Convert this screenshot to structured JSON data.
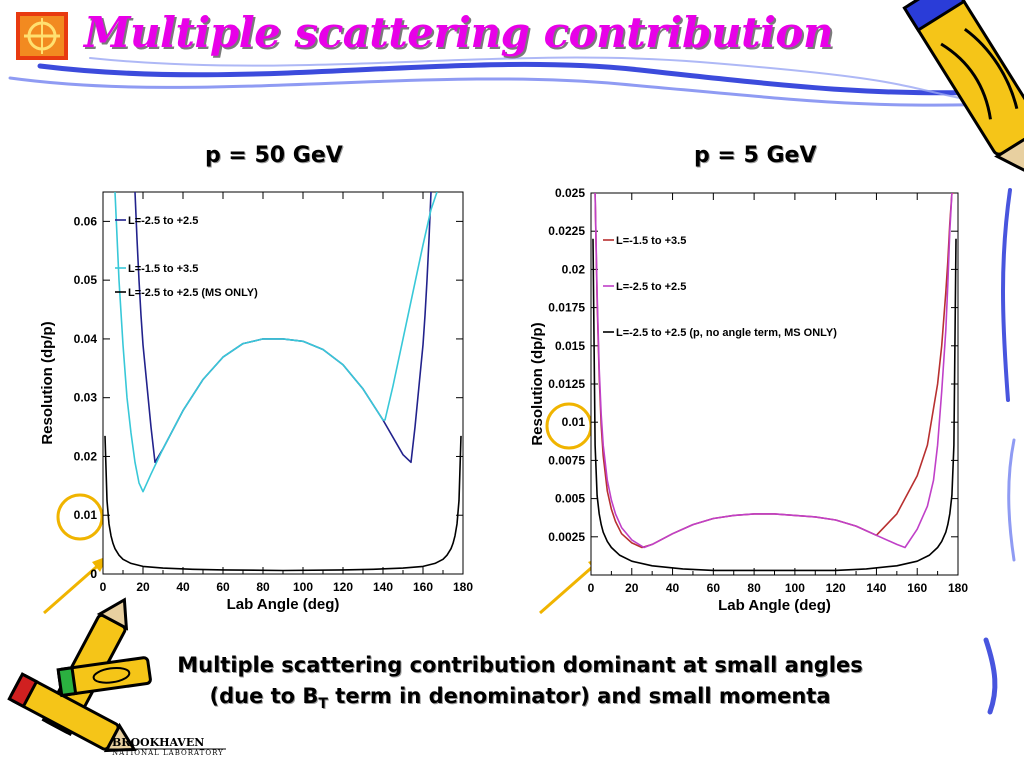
{
  "slide": {
    "title": "Multiple scattering contribution",
    "caption_line1": "Multiple scattering contribution dominant at small angles",
    "caption_line2_a": "(due to B",
    "caption_line2_sub": "T",
    "caption_line2_b": " term in denominator) and small momenta",
    "logo_text": "BROOKHAVEN",
    "logo_subtext": "NATIONAL LABORATORY",
    "colors": {
      "title": "#e800e8",
      "pencil_yellow": "#f5c518",
      "swoosh_blue": "#1a2bd6",
      "highlight_circle": "#f0b400"
    }
  },
  "chart_data": [
    {
      "type": "line",
      "title": "p = 50 GeV",
      "xlabel": "Lab Angle (deg)",
      "ylabel": "Resolution (dp/p)",
      "xlim": [
        0,
        180
      ],
      "ylim": [
        0,
        0.065
      ],
      "xticks": [
        0,
        20,
        40,
        60,
        80,
        100,
        120,
        140,
        160,
        180
      ],
      "yticks": [
        0,
        0.01,
        0.02,
        0.03,
        0.04,
        0.05,
        0.06
      ],
      "ytick_labels": [
        "0",
        "0.01",
        "0.02",
        "0.03",
        "0.04",
        "0.05",
        "0.06"
      ],
      "highlighted_tick": "0.01",
      "legend_position": "top-left",
      "series": [
        {
          "name": "L=-2.5 to +2.5",
          "color": "#22228c",
          "x": [
            16,
            17,
            18,
            19,
            20,
            22,
            24,
            26,
            30,
            40,
            50,
            60,
            70,
            80,
            90,
            100,
            110,
            120,
            130,
            140,
            150,
            154,
            156,
            158,
            160,
            161,
            162,
            163,
            164
          ],
          "y": [
            0.065,
            0.057,
            0.05,
            0.044,
            0.039,
            0.032,
            0.025,
            0.019,
            0.0213,
            0.0278,
            0.0331,
            0.0369,
            0.0392,
            0.04,
            0.04,
            0.0396,
            0.0382,
            0.0356,
            0.0315,
            0.0262,
            0.0203,
            0.019,
            0.025,
            0.032,
            0.039,
            0.044,
            0.05,
            0.057,
            0.065
          ]
        },
        {
          "name": "L=-1.5 to +3.5",
          "color": "#38c8d8",
          "x": [
            6,
            8,
            10,
            12,
            14,
            16,
            18,
            20,
            24,
            30,
            40,
            50,
            60,
            70,
            80,
            90,
            100,
            110,
            120,
            130,
            140,
            141,
            145,
            150,
            155,
            160,
            164,
            167
          ],
          "y": [
            0.065,
            0.05,
            0.039,
            0.03,
            0.024,
            0.019,
            0.0155,
            0.014,
            0.017,
            0.0213,
            0.0278,
            0.0331,
            0.0369,
            0.0392,
            0.04,
            0.04,
            0.0396,
            0.0382,
            0.0356,
            0.0315,
            0.0262,
            0.0262,
            0.032,
            0.04,
            0.048,
            0.056,
            0.062,
            0.065
          ]
        },
        {
          "name": "L=-2.5 to +2.5 (MS ONLY)",
          "color": "#000000",
          "x": [
            1,
            2,
            3,
            4,
            5,
            6,
            8,
            10,
            14,
            20,
            30,
            45,
            60,
            90,
            120,
            135,
            150,
            160,
            166,
            170,
            172,
            174,
            175,
            176,
            177,
            178,
            179
          ],
          "y": [
            0.0235,
            0.0125,
            0.0085,
            0.0065,
            0.0052,
            0.0043,
            0.0032,
            0.0025,
            0.0018,
            0.0013,
            0.001,
            0.0008,
            0.0007,
            0.0006,
            0.0007,
            0.0008,
            0.001,
            0.0013,
            0.0018,
            0.0025,
            0.0032,
            0.0043,
            0.0052,
            0.0065,
            0.0085,
            0.0125,
            0.0235
          ]
        }
      ]
    },
    {
      "type": "line",
      "title": "p = 5 GeV",
      "xlabel": "Lab Angle (deg)",
      "ylabel": "Resolution (dp/p)",
      "xlim": [
        0,
        180
      ],
      "ylim": [
        0,
        0.025
      ],
      "xticks": [
        0,
        20,
        40,
        60,
        80,
        100,
        120,
        140,
        160,
        180
      ],
      "yticks": [
        0.0025,
        0.005,
        0.0075,
        0.01,
        0.0125,
        0.015,
        0.0175,
        0.02,
        0.0225,
        0.025
      ],
      "ytick_labels": [
        "0.0025",
        "0.005",
        "0.0075",
        "0.01",
        "0.0125",
        "0.015",
        "0.0175",
        "0.02",
        "0.0225",
        "0.025"
      ],
      "highlighted_tick": "0.01",
      "legend_position": "top-left",
      "series": [
        {
          "name": "L=-1.5 to +3.5",
          "color": "#b83030",
          "x": [
            2,
            3,
            4,
            5,
            6,
            8,
            10,
            12,
            15,
            20,
            25,
            30,
            40,
            50,
            60,
            70,
            80,
            90,
            100,
            110,
            120,
            130,
            140,
            150,
            160,
            165,
            170,
            172,
            174,
            175,
            176,
            177,
            178
          ],
          "y": [
            0.025,
            0.018,
            0.013,
            0.0098,
            0.0078,
            0.0055,
            0.0043,
            0.0035,
            0.0027,
            0.0021,
            0.0018,
            0.002,
            0.0027,
            0.0033,
            0.0037,
            0.0039,
            0.004,
            0.004,
            0.0039,
            0.0038,
            0.0036,
            0.0032,
            0.0026,
            0.004,
            0.0065,
            0.0085,
            0.0125,
            0.015,
            0.0185,
            0.0205,
            0.023,
            0.025,
            0.025
          ]
        },
        {
          "name": "L=-2.5 to +2.5",
          "color": "#c040c8",
          "x": [
            2,
            3,
            4,
            5,
            6,
            8,
            10,
            12,
            15,
            20,
            26,
            30,
            40,
            50,
            60,
            70,
            80,
            90,
            100,
            110,
            120,
            130,
            140,
            150,
            154,
            160,
            165,
            168,
            170,
            172,
            174,
            175,
            176,
            177
          ],
          "y": [
            0.025,
            0.0185,
            0.0135,
            0.0105,
            0.0085,
            0.0062,
            0.0049,
            0.004,
            0.0031,
            0.0023,
            0.0018,
            0.002,
            0.0027,
            0.0033,
            0.0037,
            0.0039,
            0.004,
            0.004,
            0.0039,
            0.0038,
            0.0036,
            0.0032,
            0.0026,
            0.002,
            0.0018,
            0.003,
            0.0045,
            0.0062,
            0.0085,
            0.012,
            0.016,
            0.019,
            0.0225,
            0.025
          ]
        },
        {
          "name": "L=-2.5 to +2.5 (p, no angle term, MS ONLY)",
          "color": "#000000",
          "x": [
            1,
            2,
            3,
            4,
            5,
            6,
            8,
            10,
            14,
            20,
            30,
            45,
            60,
            90,
            120,
            135,
            150,
            160,
            166,
            170,
            172,
            174,
            175,
            176,
            177,
            178,
            179
          ],
          "y": [
            0.022,
            0.0085,
            0.0052,
            0.004,
            0.0033,
            0.0028,
            0.0022,
            0.0018,
            0.0013,
            0.0009,
            0.0006,
            0.0004,
            0.0003,
            0.0003,
            0.0003,
            0.0004,
            0.0006,
            0.0009,
            0.0013,
            0.0018,
            0.0022,
            0.0028,
            0.0033,
            0.004,
            0.0052,
            0.0085,
            0.022
          ]
        }
      ]
    }
  ]
}
